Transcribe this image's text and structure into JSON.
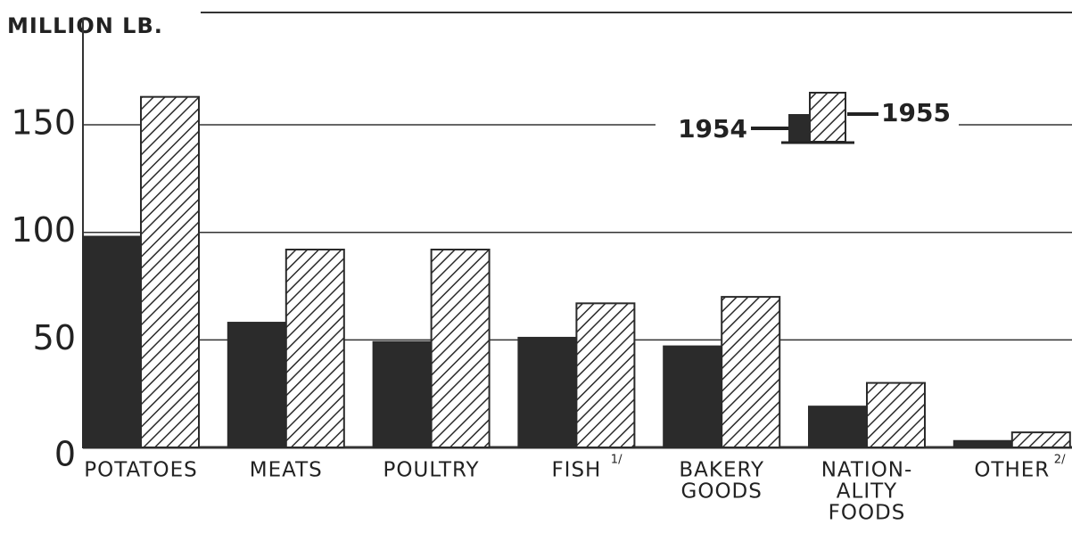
{
  "chart_data": {
    "type": "bar",
    "y_axis_label": "MILLION LB.",
    "categories": [
      [
        "POTATOES"
      ],
      [
        "MEATS"
      ],
      [
        "POULTRY"
      ],
      [
        "FISH"
      ],
      [
        "BAKERY",
        "GOODS"
      ],
      [
        "NATION-",
        "ALITY",
        "FOODS"
      ],
      [
        "OTHER"
      ]
    ],
    "category_notes": [
      null,
      null,
      null,
      "1/",
      null,
      null,
      "2/"
    ],
    "series": [
      {
        "name": "1954",
        "color": "#2b2b2b",
        "pattern": "solid",
        "values": [
          98,
          58,
          49,
          51,
          47,
          19,
          3
        ]
      },
      {
        "name": "1955",
        "color": "#2b2b2b",
        "pattern": "hatch",
        "values": [
          163,
          92,
          92,
          67,
          70,
          30,
          7
        ]
      }
    ],
    "ylim": [
      0,
      180
    ],
    "yticks": [
      0,
      50,
      100,
      150
    ],
    "grid": true
  }
}
